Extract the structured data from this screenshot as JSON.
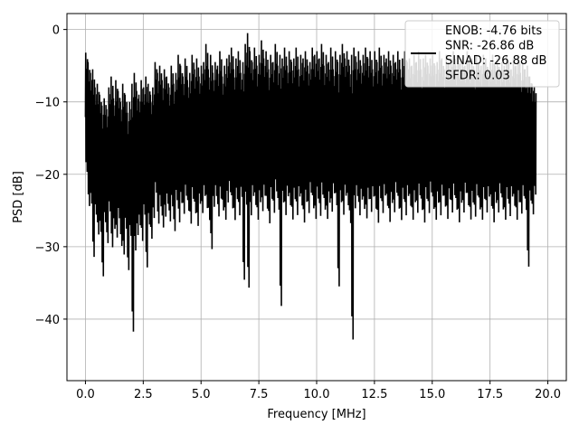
{
  "chart_data": {
    "type": "line",
    "xlabel": "Frequency [MHz]",
    "ylabel": "PSD [dB]",
    "xlim": [
      -0.8,
      20.8
    ],
    "ylim": [
      -48.5,
      2.2
    ],
    "xticks": [
      0.0,
      2.5,
      5.0,
      7.5,
      10.0,
      12.5,
      15.0,
      17.5,
      20.0
    ],
    "xtick_labels": [
      "0.0",
      "2.5",
      "5.0",
      "7.5",
      "10.0",
      "12.5",
      "15.0",
      "17.5",
      "20.0"
    ],
    "yticks": [
      0,
      -10,
      -20,
      -30,
      -40
    ],
    "ytick_labels": [
      "0",
      "−10",
      "−20",
      "−30",
      "−40"
    ],
    "grid": true,
    "legend_position": "top-right",
    "series": [
      {
        "name": "ENOB: -4.76 bits\nSNR: -26.86 dB\nSINAD: -26.88 dB\nSFDR: 0.03",
        "color": "#000000",
        "x": [
          0.0,
          0.1,
          0.2,
          0.3,
          0.4,
          0.5,
          0.6,
          0.7,
          0.8,
          0.9,
          1.0,
          1.1,
          1.2,
          1.3,
          1.4,
          1.5,
          1.6,
          1.7,
          1.8,
          1.9,
          2.0,
          2.1,
          2.2,
          2.3,
          2.4,
          2.5,
          2.6,
          2.7,
          2.8,
          2.9,
          3.0,
          3.1,
          3.2,
          3.3,
          3.4,
          3.5,
          3.6,
          3.7,
          3.8,
          3.9,
          4.0,
          4.1,
          4.2,
          4.3,
          4.4,
          4.5,
          4.6,
          4.7,
          4.8,
          4.9,
          5.0,
          5.1,
          5.2,
          5.3,
          5.4,
          5.5,
          5.6,
          5.7,
          5.8,
          5.9,
          6.0,
          6.1,
          6.2,
          6.3,
          6.4,
          6.5,
          6.6,
          6.7,
          6.8,
          6.9,
          7.0,
          7.1,
          7.2,
          7.3,
          7.4,
          7.5,
          7.6,
          7.7,
          7.8,
          7.9,
          8.0,
          8.1,
          8.2,
          8.3,
          8.4,
          8.5,
          8.6,
          8.7,
          8.8,
          8.9,
          9.0,
          9.1,
          9.2,
          9.3,
          9.4,
          9.5,
          9.6,
          9.7,
          9.8,
          9.9,
          10.0,
          10.1,
          10.2,
          10.3,
          10.4,
          10.5,
          10.6,
          10.7,
          10.8,
          10.9,
          11.0,
          11.1,
          11.2,
          11.3,
          11.4,
          11.5,
          11.6,
          11.7,
          11.8,
          11.9,
          12.0,
          12.1,
          12.2,
          12.3,
          12.4,
          12.5,
          12.6,
          12.7,
          12.8,
          12.9,
          13.0,
          13.1,
          13.2,
          13.3,
          13.4,
          13.5,
          13.6,
          13.7,
          13.8,
          13.9,
          14.0,
          14.1,
          14.2,
          14.3,
          14.4,
          14.5,
          14.6,
          14.7,
          14.8,
          14.9,
          15.0,
          15.1,
          15.2,
          15.3,
          15.4,
          15.5,
          15.6,
          15.7,
          15.8,
          15.9,
          16.0,
          16.1,
          16.2,
          16.3,
          16.4,
          16.5,
          16.6,
          16.7,
          16.8,
          16.9,
          17.0,
          17.1,
          17.2,
          17.3,
          17.4,
          17.5,
          17.6,
          17.7,
          17.8,
          17.9,
          18.0,
          18.1,
          18.2,
          18.3,
          18.4,
          18.5,
          18.6,
          18.7,
          18.8,
          18.9,
          19.0,
          19.1,
          19.2,
          19.3,
          19.4,
          19.5,
          19.6,
          19.7,
          19.8,
          19.9,
          20.0
        ],
        "y_max": [
          -3.2,
          -4.5,
          -6.0,
          -5.5,
          -8.0,
          -7.5,
          -9.0,
          -10.5,
          -9.5,
          -11.0,
          -8.0,
          -6.5,
          -9.5,
          -7.0,
          -8.5,
          -10.0,
          -7.5,
          -9.0,
          -11.5,
          -10.0,
          -7.5,
          -6.0,
          -8.5,
          -9.0,
          -7.0,
          -8.0,
          -6.5,
          -7.5,
          -9.0,
          -8.0,
          -4.5,
          -6.0,
          -5.0,
          -7.0,
          -5.5,
          -6.5,
          -8.0,
          -5.0,
          -7.5,
          -6.0,
          -3.5,
          -5.0,
          -6.5,
          -4.0,
          -7.0,
          -6.0,
          -3.5,
          -5.5,
          -4.0,
          -6.5,
          -5.0,
          -4.5,
          -2.0,
          -5.5,
          -3.5,
          -6.0,
          -4.5,
          -5.0,
          -3.0,
          -6.5,
          -5.0,
          -4.0,
          -3.5,
          -2.5,
          -5.5,
          -4.0,
          -3.0,
          -6.0,
          -4.5,
          -2.0,
          -0.5,
          -3.0,
          -4.5,
          -2.5,
          -5.0,
          -3.5,
          -1.5,
          -4.0,
          -3.0,
          -5.5,
          -3.5,
          -4.5,
          -2.0,
          -5.0,
          -3.5,
          -4.0,
          -2.5,
          -5.0,
          -3.0,
          -4.5,
          -4.0,
          -2.5,
          -5.5,
          -3.5,
          -4.0,
          -3.0,
          -5.0,
          -4.5,
          -2.5,
          -3.5,
          -3.0,
          -4.0,
          -2.0,
          -5.0,
          -3.5,
          -4.5,
          -2.5,
          -5.5,
          -3.0,
          -4.5,
          -3.5,
          -2.0,
          -4.0,
          -3.0,
          -5.0,
          -3.5,
          -2.5,
          -4.5,
          -3.0,
          -5.0,
          -3.5,
          -2.5,
          -4.0,
          -3.0,
          -5.5,
          -3.0,
          -4.5,
          -2.5,
          -5.0,
          -3.5,
          -4.0,
          -3.0,
          -5.0,
          -3.5,
          -4.5,
          -3.0,
          -5.5,
          -4.0,
          -3.0,
          -4.5,
          -4.0,
          -5.0,
          -3.5,
          -4.5,
          -3.0,
          -5.5,
          -4.0,
          -3.5,
          -5.0,
          -4.0,
          -3.5,
          -5.0,
          -4.5,
          -3.0,
          -4.0,
          -5.5,
          -3.5,
          -4.5,
          -4.0,
          -3.0,
          -5.0,
          -3.5,
          -4.5,
          -4.0,
          -5.0,
          -3.0,
          -4.5,
          -4.0,
          -5.5,
          -3.5,
          -4.5,
          -5.0,
          -3.5,
          -4.0,
          -5.5,
          -4.5,
          -3.5,
          -5.0,
          -4.0,
          -5.5,
          -4.5,
          -5.0,
          -3.5,
          -4.5,
          -5.5,
          -4.0,
          -5.0,
          -3.5,
          -6.0,
          -4.5,
          -5.5,
          -5.0,
          -6.5,
          -7.5,
          -8.0
        ],
        "y_min": [
          -21.0,
          -26.0,
          -25.5,
          -33.5,
          -27.0,
          -30.0,
          -29.5,
          -36.0,
          -28.0,
          -31.0,
          -26.5,
          -32.0,
          -29.0,
          -30.5,
          -27.5,
          -31.5,
          -33.0,
          -29.0,
          -35.0,
          -30.0,
          -44.5,
          -32.5,
          -30.0,
          -28.5,
          -31.0,
          -27.0,
          -35.0,
          -28.5,
          -30.5,
          -27.5,
          -24.0,
          -28.5,
          -26.0,
          -29.0,
          -27.5,
          -25.5,
          -28.0,
          -26.0,
          -29.5,
          -25.0,
          -28.5,
          -25.5,
          -27.0,
          -24.5,
          -26.5,
          -28.5,
          -25.0,
          -27.0,
          -29.0,
          -25.5,
          -27.0,
          -24.5,
          -26.5,
          -28.0,
          -32.5,
          -26.0,
          -24.5,
          -27.5,
          -25.0,
          -26.5,
          -28.0,
          -25.5,
          -24.0,
          -26.5,
          -28.0,
          -25.0,
          -27.5,
          -24.5,
          -37.0,
          -26.0,
          -38.5,
          -27.5,
          -24.5,
          -26.0,
          -28.0,
          -25.5,
          -27.0,
          -24.5,
          -26.5,
          -28.5,
          -25.0,
          -27.0,
          -24.0,
          -26.5,
          -41.0,
          -25.5,
          -27.5,
          -24.5,
          -26.0,
          -28.0,
          -25.0,
          -27.5,
          -24.5,
          -26.0,
          -28.5,
          -25.5,
          -27.0,
          -24.0,
          -26.5,
          -28.0,
          -25.0,
          -27.5,
          -24.5,
          -26.5,
          -28.0,
          -25.5,
          -27.0,
          -24.0,
          -26.0,
          -38.0,
          -25.5,
          -27.5,
          -24.5,
          -26.0,
          -28.5,
          -46.0,
          -26.5,
          -24.5,
          -27.5,
          -25.0,
          -26.5,
          -28.0,
          -25.0,
          -27.0,
          -24.5,
          -26.5,
          -28.5,
          -25.0,
          -27.0,
          -24.5,
          -26.0,
          -28.5,
          -25.5,
          -27.0,
          -24.0,
          -26.5,
          -28.0,
          -25.0,
          -27.5,
          -24.5,
          -26.0,
          -28.0,
          -25.5,
          -27.0,
          -24.5,
          -26.5,
          -28.5,
          -25.0,
          -27.0,
          -24.0,
          -26.5,
          -28.0,
          -25.5,
          -27.5,
          -24.5,
          -26.0,
          -28.0,
          -25.0,
          -27.0,
          -24.5,
          -26.5,
          -28.5,
          -25.5,
          -27.0,
          -24.0,
          -26.0,
          -28.0,
          -25.5,
          -27.5,
          -24.5,
          -26.5,
          -28.0,
          -25.0,
          -27.0,
          -24.5,
          -26.0,
          -28.5,
          -25.5,
          -27.0,
          -24.0,
          -26.5,
          -28.0,
          -25.0,
          -27.5,
          -24.5,
          -26.0,
          -28.0,
          -25.5,
          -27.0,
          -24.5,
          -26.5,
          -35.0,
          -25.0,
          -27.0,
          -24.0,
          -26.5,
          -19.0
        ]
      }
    ]
  }
}
